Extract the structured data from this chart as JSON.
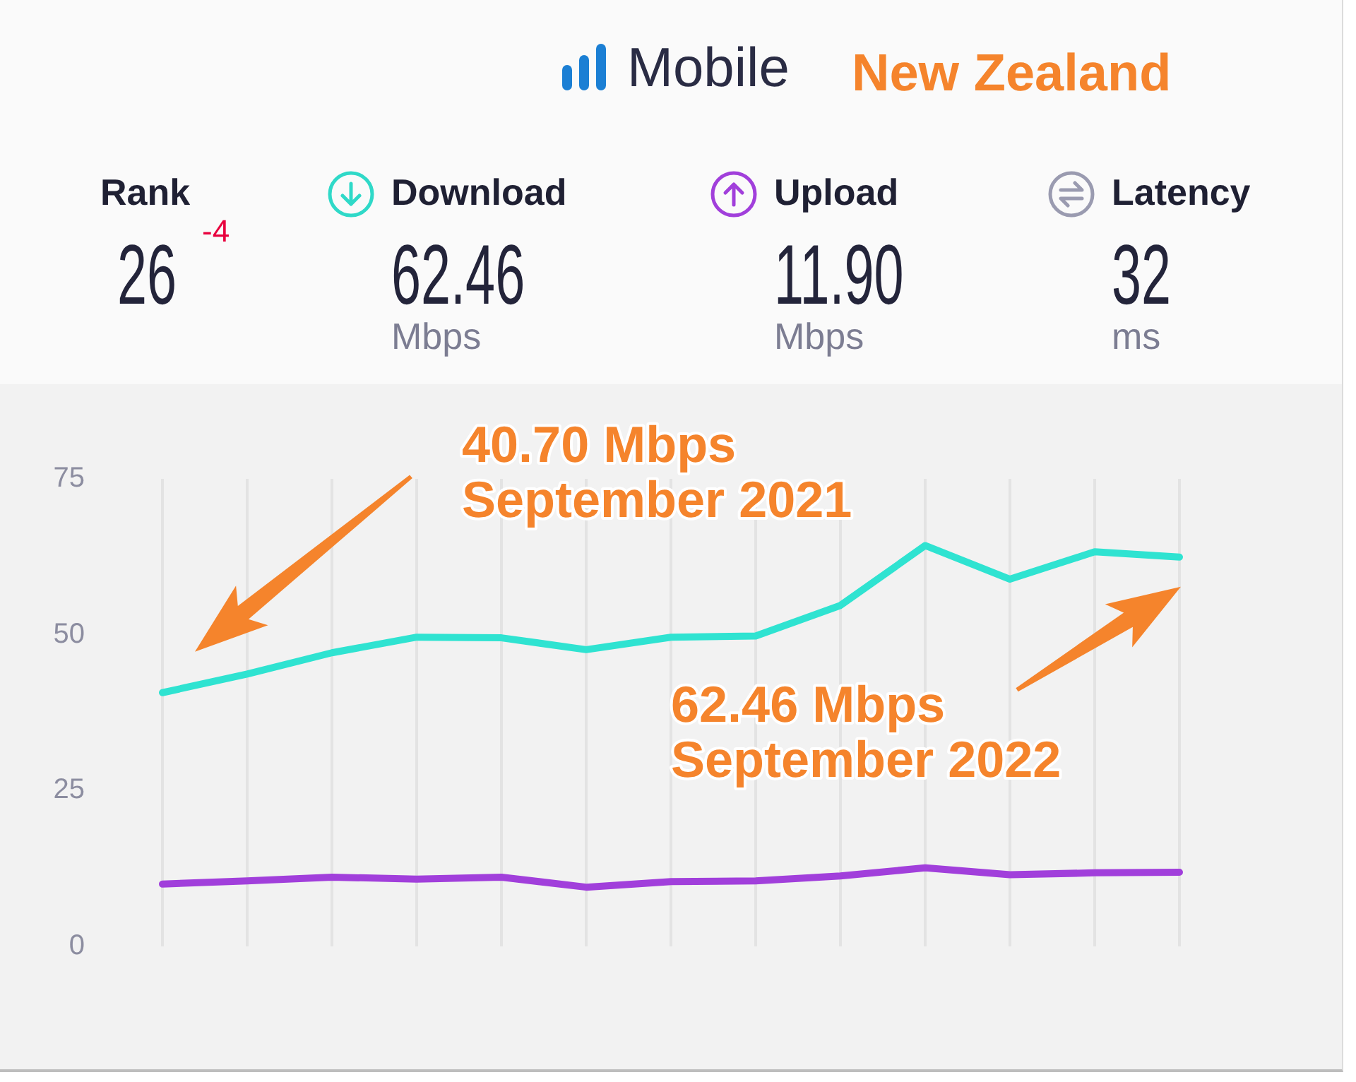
{
  "chart_data": [
    {
      "type": "other",
      "title": "Mobile",
      "subtitle": "New Zealand",
      "annotations": [
        "Rank",
        "26",
        "-4",
        "Download",
        "62.46",
        "Mbps",
        "Upload",
        "11.90",
        "Mbps",
        "Latency",
        "32",
        "ms"
      ]
    },
    {
      "type": "line",
      "categories": [
        null,
        null,
        null,
        null,
        null,
        null,
        null,
        null,
        null,
        null,
        null,
        null,
        null
      ],
      "series": [
        {
          "color": "#2fe3d1",
          "values": [
            40.7,
            43.7,
            47.1,
            49.6,
            49.5,
            47.6,
            49.6,
            49.8,
            54.7,
            64.3,
            58.9,
            63.3,
            62.46
          ]
        },
        {
          "color": "#a13fdb",
          "values": [
            10.0,
            10.5,
            11.1,
            10.8,
            11.1,
            9.5,
            10.4,
            10.5,
            11.3,
            12.6,
            11.5,
            11.8,
            11.9
          ]
        }
      ],
      "ylim": [
        0,
        75
      ],
      "yticks": [
        0,
        25,
        50,
        75
      ],
      "grid": "x",
      "marker": "none",
      "annotations": [
        "40.70 Mbps\nSeptember 2021",
        "62.46 Mbps\nSeptember 2022"
      ]
    }
  ]
}
